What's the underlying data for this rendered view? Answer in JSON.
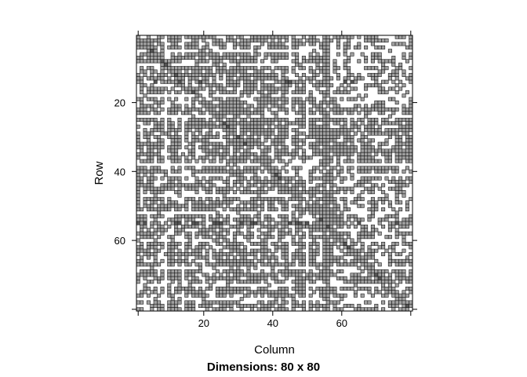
{
  "chart_data": {
    "type": "heatmap",
    "subtype": "sparse-matrix-image",
    "title": "Dimensions: 80 x 80",
    "xlabel": "Column",
    "ylabel": "Row",
    "nrow": 80,
    "ncol": 80,
    "xlim": [
      1,
      80
    ],
    "ylim": [
      80,
      1
    ],
    "x_ticks": [
      20,
      40,
      60
    ],
    "y_ticks": [
      20,
      40,
      60
    ],
    "fill_color": "#a0a0a0",
    "dark_fill_color": "#555555",
    "cell_border_color": "#1a1a1a",
    "background_color": "#ffffff",
    "density": 0.7,
    "white_rows": [
      5,
      9,
      18,
      24,
      38,
      41,
      47,
      52,
      60,
      68,
      73,
      77
    ],
    "white_cols": [
      9,
      14,
      45,
      50
    ],
    "grey_cols": [
      55,
      56
    ],
    "dense_blocks": [
      {
        "rows": [
          2,
          20
        ],
        "cols": [
          55,
          79
        ],
        "density": 0.45
      },
      {
        "rows": [
          40,
          80
        ],
        "cols": [
          60,
          80
        ],
        "density": 0.5
      }
    ],
    "dark_rows": [
      14,
      55
    ]
  }
}
